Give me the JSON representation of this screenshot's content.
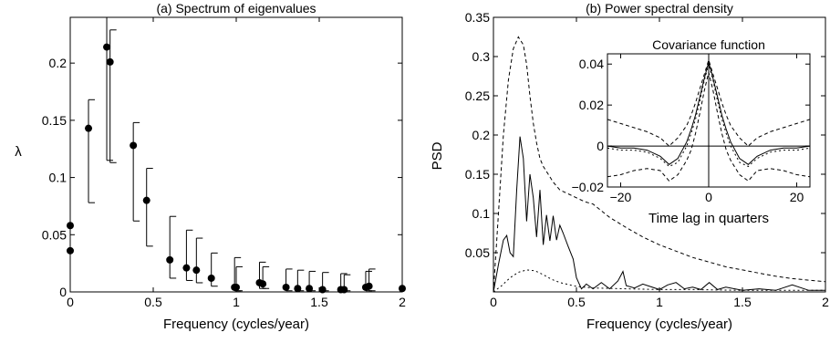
{
  "chart_data": [
    {
      "type": "scatter",
      "title": "(a) Spectrum of eigenvalues",
      "xlabel": "Frequency (cycles/year)",
      "ylabel": "λ",
      "xlim": [
        0,
        2
      ],
      "ylim": [
        0,
        0.24
      ],
      "xticks": [
        0,
        0.5,
        1,
        1.5,
        2
      ],
      "yticks": [
        0,
        0.05,
        0.1,
        0.15,
        0.2
      ],
      "xtick_labels": [
        "0",
        "0.5",
        "1",
        "1.5",
        "2"
      ],
      "ytick_labels": [
        "0",
        "0.05",
        "0.1",
        "0.15",
        "0.2"
      ],
      "grid": false,
      "points": [
        {
          "x": 0.0,
          "y": 0.058
        },
        {
          "x": 0.0,
          "y": 0.036
        },
        {
          "x": 0.11,
          "y": 0.143,
          "lo": 0.078,
          "hi": 0.168
        },
        {
          "x": 0.22,
          "y": 0.214,
          "lo": 0.115,
          "hi": 0.24
        },
        {
          "x": 0.24,
          "y": 0.201,
          "lo": 0.113,
          "hi": 0.229
        },
        {
          "x": 0.38,
          "y": 0.128,
          "lo": 0.062,
          "hi": 0.148
        },
        {
          "x": 0.46,
          "y": 0.08,
          "lo": 0.04,
          "hi": 0.108
        },
        {
          "x": 0.6,
          "y": 0.028,
          "lo": 0.012,
          "hi": 0.066
        },
        {
          "x": 0.7,
          "y": 0.021,
          "lo": 0.01,
          "hi": 0.054
        },
        {
          "x": 0.76,
          "y": 0.019,
          "lo": 0.008,
          "hi": 0.047
        },
        {
          "x": 0.85,
          "y": 0.012,
          "lo": 0.005,
          "hi": 0.034
        },
        {
          "x": 0.99,
          "y": 0.004,
          "lo": 0.001,
          "hi": 0.03
        },
        {
          "x": 1.0,
          "y": 0.004,
          "lo": 0.001,
          "hi": 0.022
        },
        {
          "x": 1.14,
          "y": 0.008,
          "lo": 0.003,
          "hi": 0.026
        },
        {
          "x": 1.16,
          "y": 0.007,
          "lo": 0.003,
          "hi": 0.022
        },
        {
          "x": 1.3,
          "y": 0.004,
          "lo": 0.001,
          "hi": 0.02
        },
        {
          "x": 1.37,
          "y": 0.003,
          "lo": 0.001,
          "hi": 0.019
        },
        {
          "x": 1.44,
          "y": 0.003,
          "lo": 0.001,
          "hi": 0.018
        },
        {
          "x": 1.52,
          "y": 0.002,
          "lo": 0.001,
          "hi": 0.017
        },
        {
          "x": 1.63,
          "y": 0.002,
          "lo": 0.001,
          "hi": 0.016
        },
        {
          "x": 1.65,
          "y": 0.002,
          "lo": 0.001,
          "hi": 0.015
        },
        {
          "x": 1.78,
          "y": 0.004,
          "lo": 0.001,
          "hi": 0.018
        },
        {
          "x": 1.8,
          "y": 0.005,
          "lo": 0.001,
          "hi": 0.02
        },
        {
          "x": 2.0,
          "y": 0.003
        }
      ]
    },
    {
      "type": "line",
      "title": "(b) Power spectral density",
      "xlabel": "Frequency (cycles/year)",
      "ylabel": "PSD",
      "xlim": [
        0,
        2
      ],
      "ylim": [
        0,
        0.35
      ],
      "xticks": [
        0,
        0.5,
        1,
        1.5,
        2
      ],
      "yticks": [
        0.05,
        0.1,
        0.15,
        0.2,
        0.25,
        0.3,
        0.35
      ],
      "xtick_labels": [
        "0",
        "0.5",
        "1",
        "1.5",
        "2"
      ],
      "ytick_labels": [
        "0.05",
        "0.1",
        "0.15",
        "0.2",
        "0.25",
        "0.3",
        "0.35"
      ],
      "grid": false,
      "series": [
        {
          "style": "solid",
          "x": [
            0,
            0.03,
            0.06,
            0.08,
            0.1,
            0.12,
            0.14,
            0.16,
            0.18,
            0.2,
            0.22,
            0.24,
            0.26,
            0.28,
            0.3,
            0.32,
            0.34,
            0.36,
            0.38,
            0.4,
            0.42,
            0.45,
            0.48,
            0.5,
            0.53,
            0.56,
            0.6,
            0.65,
            0.7,
            0.75,
            0.78,
            0.8,
            0.85,
            0.9,
            1.0,
            1.05,
            1.1,
            1.15,
            1.2,
            1.25,
            1.3,
            1.35,
            1.4,
            1.5,
            1.6,
            1.7,
            1.8,
            1.9,
            2.0
          ],
          "y": [
            0,
            0.035,
            0.066,
            0.072,
            0.05,
            0.045,
            0.13,
            0.198,
            0.17,
            0.09,
            0.15,
            0.12,
            0.07,
            0.13,
            0.06,
            0.098,
            0.065,
            0.097,
            0.066,
            0.085,
            0.075,
            0.058,
            0.042,
            0.018,
            0.004,
            0.01,
            0.004,
            0.012,
            0.004,
            0.014,
            0.026,
            0.008,
            0.005,
            0.01,
            0.003,
            0.009,
            0.012,
            0.004,
            0.006,
            0.003,
            0.012,
            0.003,
            0.006,
            0.002,
            0.004,
            0.002,
            0.009,
            0.002,
            0.002
          ]
        },
        {
          "style": "dashed",
          "x": [
            0,
            0.03,
            0.06,
            0.09,
            0.12,
            0.15,
            0.18,
            0.2,
            0.22,
            0.24,
            0.26,
            0.28,
            0.3,
            0.33,
            0.36,
            0.4,
            0.45,
            0.5,
            0.55,
            0.6,
            0.7,
            0.8,
            0.9,
            1.0,
            1.1,
            1.2,
            1.3,
            1.4,
            1.5,
            1.6,
            1.7,
            1.8,
            1.9,
            2.0
          ],
          "y": [
            0,
            0.1,
            0.2,
            0.27,
            0.31,
            0.325,
            0.315,
            0.29,
            0.25,
            0.215,
            0.19,
            0.17,
            0.16,
            0.15,
            0.14,
            0.13,
            0.125,
            0.12,
            0.115,
            0.112,
            0.095,
            0.082,
            0.07,
            0.06,
            0.052,
            0.044,
            0.038,
            0.032,
            0.028,
            0.024,
            0.02,
            0.017,
            0.015,
            0.013
          ]
        },
        {
          "style": "dotted",
          "x": [
            0,
            0.05,
            0.1,
            0.15,
            0.2,
            0.25,
            0.3,
            0.35,
            0.4,
            0.5,
            0.6,
            0.8,
            1.0,
            1.2,
            1.5,
            1.8,
            2.0
          ],
          "y": [
            0,
            0.008,
            0.018,
            0.025,
            0.028,
            0.027,
            0.022,
            0.016,
            0.012,
            0.007,
            0.005,
            0.004,
            0.003,
            0.003,
            0.002,
            0.002,
            0.002
          ]
        }
      ],
      "inset": {
        "type": "line",
        "title": "Covariance function",
        "xlabel": "Time lag in quarters",
        "xlim": [
          -23,
          23
        ],
        "ylim": [
          -0.02,
          0.045
        ],
        "xticks": [
          -20,
          0,
          20
        ],
        "yticks": [
          -0.02,
          0,
          0.02,
          0.04
        ],
        "xtick_labels": [
          "−20",
          "0",
          "20"
        ],
        "ytick_labels": [
          "−0.02",
          "0",
          "0.02",
          "0.04"
        ],
        "series": [
          {
            "style": "solid",
            "x": [
              -23,
              -20,
              -17,
              -14,
              -11,
              -9,
              -7,
              -5,
              -4,
              -3,
              -2,
              -1,
              0,
              1,
              2,
              3,
              4,
              5,
              7,
              9,
              11,
              14,
              17,
              20,
              23
            ],
            "y": [
              0,
              -0.001,
              -0.001,
              -0.002,
              -0.005,
              -0.009,
              -0.006,
              0.002,
              0.008,
              0.015,
              0.024,
              0.033,
              0.041,
              0.033,
              0.024,
              0.015,
              0.008,
              0.002,
              -0.006,
              -0.009,
              -0.005,
              -0.002,
              -0.001,
              -0.001,
              0
            ]
          },
          {
            "style": "dashed",
            "x": [
              -23,
              -20,
              -17,
              -14,
              -11,
              -9,
              -7,
              -5,
              -4,
              -3,
              -2,
              -1,
              0,
              1,
              2,
              3,
              4,
              5,
              7,
              9,
              11,
              14,
              17,
              20,
              23
            ],
            "y": [
              0.013,
              0.011,
              0.009,
              0.007,
              0.004,
              0,
              0.004,
              0.01,
              0.015,
              0.021,
              0.028,
              0.035,
              0.042,
              0.035,
              0.028,
              0.021,
              0.015,
              0.01,
              0.004,
              0,
              0.004,
              0.007,
              0.009,
              0.011,
              0.013
            ]
          },
          {
            "style": "dashed",
            "x": [
              -23,
              -20,
              -17,
              -14,
              -11,
              -9,
              -7,
              -5,
              -4,
              -3,
              -2,
              -1,
              0,
              1,
              2,
              3,
              4,
              5,
              7,
              9,
              11,
              14,
              17,
              20,
              23
            ],
            "y": [
              -0.015,
              -0.014,
              -0.012,
              -0.011,
              -0.012,
              -0.017,
              -0.014,
              -0.007,
              -0.002,
              0.006,
              0.016,
              0.027,
              0.036,
              0.027,
              0.016,
              0.006,
              -0.002,
              -0.007,
              -0.014,
              -0.017,
              -0.012,
              -0.011,
              -0.012,
              -0.014,
              -0.015
            ]
          },
          {
            "style": "dotted",
            "x": [
              -23,
              -20,
              -17,
              -14,
              -11,
              -9,
              -7,
              -5,
              -4,
              -3,
              -2,
              -1,
              0,
              1,
              2,
              3,
              4,
              5,
              7,
              9,
              11,
              14,
              17,
              20,
              23
            ],
            "y": [
              -0.001,
              -0.002,
              -0.002,
              -0.003,
              -0.006,
              -0.01,
              -0.008,
              0,
              0.006,
              0.013,
              0.022,
              0.032,
              0.04,
              0.032,
              0.022,
              0.013,
              0.006,
              0,
              -0.008,
              -0.01,
              -0.006,
              -0.003,
              -0.002,
              -0.002,
              -0.001
            ]
          }
        ]
      }
    }
  ]
}
